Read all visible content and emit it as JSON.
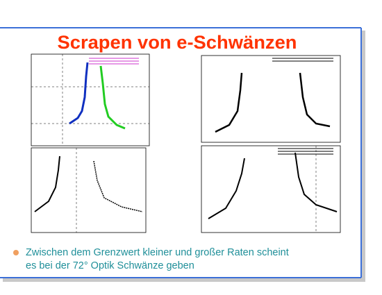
{
  "slide": {
    "title": "Scrapen von e-Schwänzen",
    "bullets": [
      {
        "lines": [
          "Zwischen dem Grenzwert kleiner und großer Raten scheint",
          "es bei der 72° Optik Schwänze geben"
        ]
      }
    ]
  }
}
